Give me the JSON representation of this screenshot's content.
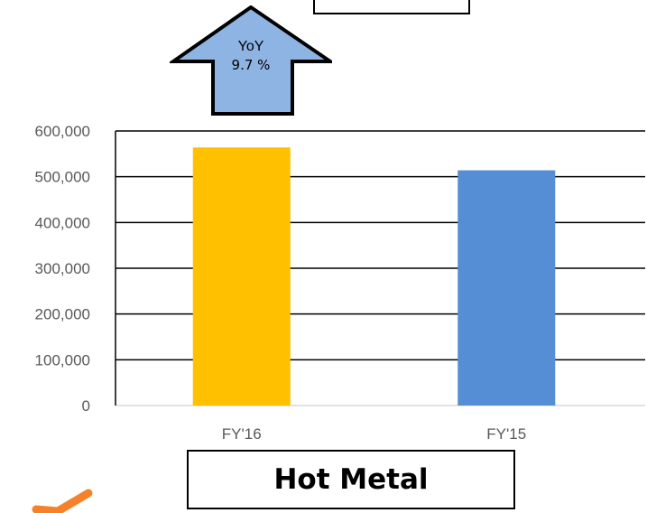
{
  "yoy_callout": {
    "label": "YoY",
    "value": "9.7 %"
  },
  "title": "Hot Metal",
  "colors": {
    "fy16": "#FFC000",
    "fy15": "#558ED5",
    "arrow_fill": "#8EB4E3",
    "check": "#F5822A"
  },
  "icons": {
    "callout": "up-arrow-icon",
    "corner": "checkmark-icon"
  },
  "chart_data": {
    "type": "bar",
    "categories": [
      "FY'16",
      "FY'15"
    ],
    "values": [
      564000,
      514000
    ],
    "colors": [
      "#FFC000",
      "#558ED5"
    ],
    "ylim": [
      0,
      600000
    ],
    "yticks": [
      "0",
      "100,000",
      "200,000",
      "300,000",
      "400,000",
      "500,000",
      "600,000"
    ],
    "grid": true,
    "legend": "none",
    "title": "Hot Metal",
    "xlabel": "",
    "ylabel": ""
  }
}
